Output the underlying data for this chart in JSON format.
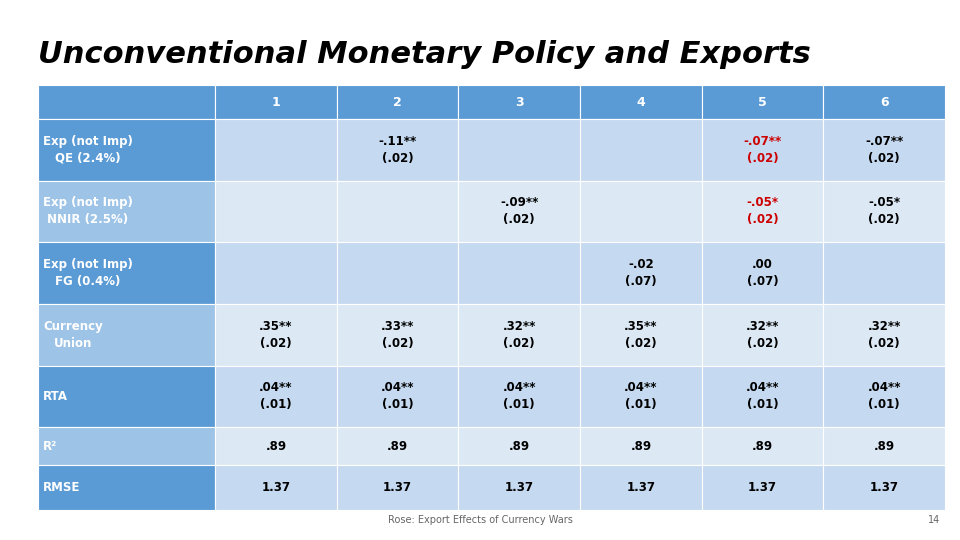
{
  "title": "Unconventional Monetary Policy and Exports",
  "title_fontsize": 22,
  "title_color": "#000000",
  "background_color": "#ffffff",
  "header_bg": "#5b9bd5",
  "header_text_color": "#ffffff",
  "row_bg_odd": "#c5d9f0",
  "row_bg_even": "#dce9f5",
  "footer_text": "Rose: Export Effects of Currency Wars",
  "page_number": "14",
  "col_headers": [
    "",
    "1",
    "2",
    "3",
    "4",
    "5",
    "6"
  ],
  "rows": [
    {
      "label": "Exp (not Imp)\nQE (2.4%)",
      "label_bg": "#5b9bd5",
      "label_text_color": "#ffffff",
      "values": [
        "",
        "-.11**\n(.02)",
        "",
        "",
        "-.07**\n(.02)",
        "-.07**\n(.02)"
      ],
      "value_colors": [
        "#000000",
        "#000000",
        "#000000",
        "#000000",
        "#cc0000",
        "#000000"
      ]
    },
    {
      "label": "Exp (not Imp)\nNNIR (2.5%)",
      "label_bg": "#9dc3e6",
      "label_text_color": "#ffffff",
      "values": [
        "",
        "",
        "-.09**\n(.02)",
        "",
        "-.05*\n(.02)",
        "-.05*\n(.02)"
      ],
      "value_colors": [
        "#000000",
        "#000000",
        "#000000",
        "#000000",
        "#cc0000",
        "#000000"
      ]
    },
    {
      "label": "Exp (not Imp)\nFG (0.4%)",
      "label_bg": "#5b9bd5",
      "label_text_color": "#ffffff",
      "values": [
        "",
        "",
        "",
        "-.02\n(.07)",
        ".00\n(.07)",
        ""
      ],
      "value_colors": [
        "#000000",
        "#000000",
        "#000000",
        "#000000",
        "#000000",
        "#000000"
      ]
    },
    {
      "label": "Currency\nUnion",
      "label_bg": "#9dc3e6",
      "label_text_color": "#ffffff",
      "values": [
        ".35**\n(.02)",
        ".33**\n(.02)",
        ".32**\n(.02)",
        ".35**\n(.02)",
        ".32**\n(.02)",
        ".32**\n(.02)"
      ],
      "value_colors": [
        "#000000",
        "#000000",
        "#000000",
        "#000000",
        "#000000",
        "#000000"
      ]
    },
    {
      "label": "RTA",
      "label_bg": "#5b9bd5",
      "label_text_color": "#ffffff",
      "values": [
        ".04**\n(.01)",
        ".04**\n(.01)",
        ".04**\n(.01)",
        ".04**\n(.01)",
        ".04**\n(.01)",
        ".04**\n(.01)"
      ],
      "value_colors": [
        "#000000",
        "#000000",
        "#000000",
        "#000000",
        "#000000",
        "#000000"
      ]
    },
    {
      "label": "R²",
      "label_bg": "#9dc3e6",
      "label_text_color": "#ffffff",
      "values": [
        ".89",
        ".89",
        ".89",
        ".89",
        ".89",
        ".89"
      ],
      "value_colors": [
        "#000000",
        "#000000",
        "#000000",
        "#000000",
        "#000000",
        "#000000"
      ]
    },
    {
      "label": "RMSE",
      "label_bg": "#5b9bd5",
      "label_text_color": "#ffffff",
      "values": [
        "1.37",
        "1.37",
        "1.37",
        "1.37",
        "1.37",
        "1.37"
      ],
      "value_colors": [
        "#000000",
        "#000000",
        "#000000",
        "#000000",
        "#000000",
        "#000000"
      ]
    }
  ]
}
